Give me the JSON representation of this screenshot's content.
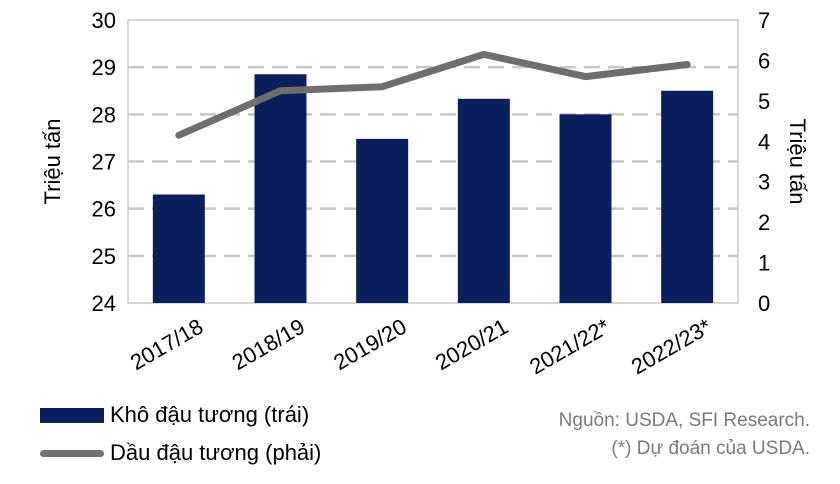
{
  "chart_data": {
    "type": "bar",
    "categories": [
      "2017/18",
      "2018/19",
      "2019/20",
      "2020/21",
      "2021/22*",
      "2022/23*"
    ],
    "series": [
      {
        "name": "Khô đậu tương (trái)",
        "type": "bar",
        "axis": "left",
        "values": [
          26.3,
          28.85,
          27.48,
          28.33,
          28.0,
          28.5
        ],
        "color": "#0a1f5c"
      },
      {
        "name": "Dầu đậu tương (phải)",
        "type": "line",
        "axis": "right",
        "values": [
          4.15,
          5.25,
          5.35,
          6.15,
          5.6,
          5.9
        ],
        "color": "#6e6e6e"
      }
    ],
    "y_left": {
      "label": "Triệu tấn",
      "min": 24,
      "max": 30,
      "ticks": [
        24,
        25,
        26,
        27,
        28,
        29,
        30
      ]
    },
    "y_right": {
      "label": "Triệu tấn",
      "min": 0,
      "max": 7,
      "ticks": [
        0,
        1,
        2,
        3,
        4,
        5,
        6,
        7
      ]
    },
    "grid": true,
    "legend": "bottom-left"
  },
  "notes": {
    "source": "Nguồn: USDA, SFI Research.",
    "forecast": "(*) Dự đoán của USDA."
  }
}
